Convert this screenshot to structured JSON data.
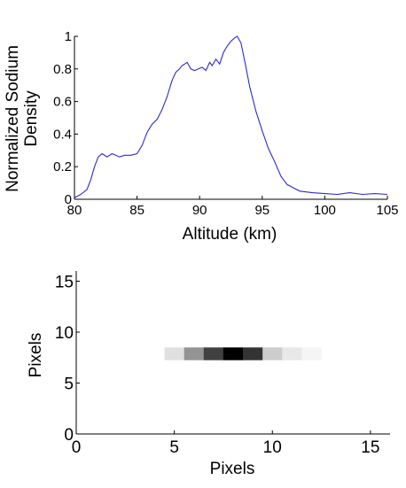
{
  "chart_data": [
    {
      "type": "line",
      "title": "",
      "xlabel": "Altitude (km)",
      "ylabel": [
        "Normalized Sodium",
        "Density"
      ],
      "xlim": [
        80,
        105
      ],
      "ylim": [
        0,
        1
      ],
      "xticks": [
        80,
        85,
        90,
        95,
        100,
        105
      ],
      "yticks": [
        0,
        0.2,
        0.4,
        0.6,
        0.8,
        1
      ],
      "ytick_labels": [
        "0",
        "0.2",
        "0.4",
        "0.6",
        "0.8",
        "1"
      ],
      "grid": false,
      "series": [
        {
          "color": "#2a2ad6",
          "x": [
            80,
            80.5,
            81,
            81.3,
            81.6,
            81.9,
            82.2,
            82.6,
            83.0,
            83.3,
            83.6,
            84.0,
            84.5,
            85.0,
            85.4,
            85.8,
            86.2,
            86.6,
            87.0,
            87.4,
            87.8,
            88.1,
            88.4,
            88.6,
            88.8,
            89.0,
            89.3,
            89.6,
            89.9,
            90.2,
            90.5,
            90.8,
            91.0,
            91.3,
            91.6,
            91.9,
            92.2,
            92.5,
            92.8,
            93.0,
            93.3,
            93.6,
            94.0,
            94.5,
            95.0,
            95.5,
            96.0,
            96.5,
            97.0,
            97.5,
            98.0,
            99.0,
            100.0,
            101.0,
            102.0,
            103.0,
            104.0,
            105.0
          ],
          "y": [
            0.01,
            0.03,
            0.06,
            0.12,
            0.2,
            0.26,
            0.28,
            0.26,
            0.28,
            0.27,
            0.26,
            0.27,
            0.27,
            0.28,
            0.33,
            0.41,
            0.46,
            0.49,
            0.55,
            0.63,
            0.73,
            0.78,
            0.8,
            0.82,
            0.83,
            0.84,
            0.8,
            0.79,
            0.8,
            0.81,
            0.79,
            0.84,
            0.82,
            0.86,
            0.83,
            0.9,
            0.94,
            0.97,
            0.99,
            1.0,
            0.96,
            0.85,
            0.69,
            0.54,
            0.42,
            0.31,
            0.23,
            0.14,
            0.09,
            0.07,
            0.05,
            0.04,
            0.035,
            0.03,
            0.04,
            0.03,
            0.035,
            0.03
          ]
        }
      ]
    },
    {
      "type": "heatmap",
      "title": "",
      "xlabel": "Pixels",
      "ylabel": "Pixels",
      "xlim": [
        0,
        16
      ],
      "ylim": [
        0,
        16
      ],
      "xticks": [
        0,
        5,
        10,
        15
      ],
      "yticks": [
        0,
        5,
        10,
        15
      ],
      "grid": false,
      "colormap": "gray-inverted",
      "row_y": [
        7.25,
        8.5
      ],
      "cells_x_start": [
        4.5,
        5.5,
        6.5,
        7.5,
        8.5,
        9.5,
        10.5,
        11.5
      ],
      "intensity": [
        0.12,
        0.42,
        0.75,
        1.0,
        0.8,
        0.2,
        0.09,
        0.04
      ]
    }
  ]
}
